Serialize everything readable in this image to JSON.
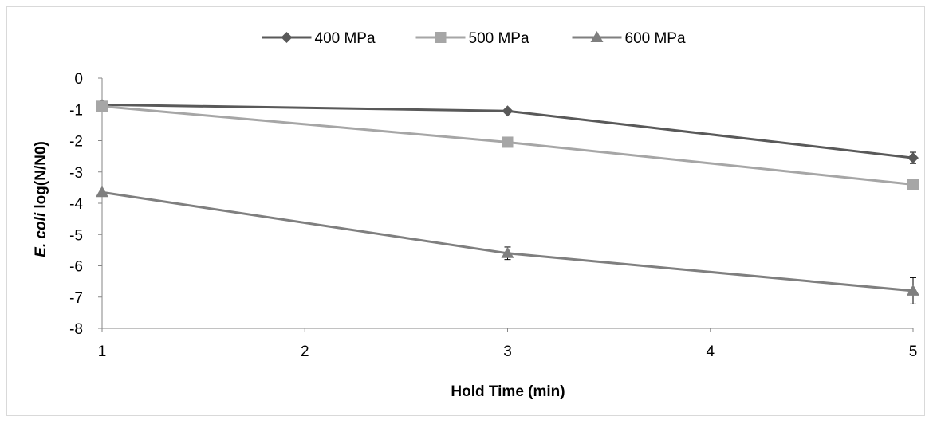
{
  "chart_data": {
    "type": "line",
    "title": "",
    "xlabel": "Hold Time (min)",
    "ylabel_italic": "E. coli",
    "ylabel_rest": " log(N/N0)",
    "x": [
      1,
      3,
      5
    ],
    "xticks": [
      1,
      2,
      3,
      4,
      5
    ],
    "yticks": [
      0,
      -1,
      -2,
      -3,
      -4,
      -5,
      -6,
      -7,
      -8
    ],
    "xlim": [
      1,
      5
    ],
    "ylim": [
      -8,
      0
    ],
    "grid": false,
    "legend_position": "top",
    "series": [
      {
        "name": "400 MPa",
        "values": [
          -0.85,
          -1.05,
          -2.55
        ],
        "errors": [
          0,
          0,
          0.18
        ],
        "marker": "diamond",
        "color": "#595959"
      },
      {
        "name": "500 MPa",
        "values": [
          -0.9,
          -2.05,
          -3.4
        ],
        "errors": [
          0,
          0,
          0
        ],
        "marker": "square",
        "color": "#a6a6a6"
      },
      {
        "name": "600 MPa",
        "values": [
          -3.65,
          -5.6,
          -6.8
        ],
        "errors": [
          0,
          0.2,
          0.42
        ],
        "marker": "triangle",
        "color": "#7f7f7f"
      }
    ]
  }
}
